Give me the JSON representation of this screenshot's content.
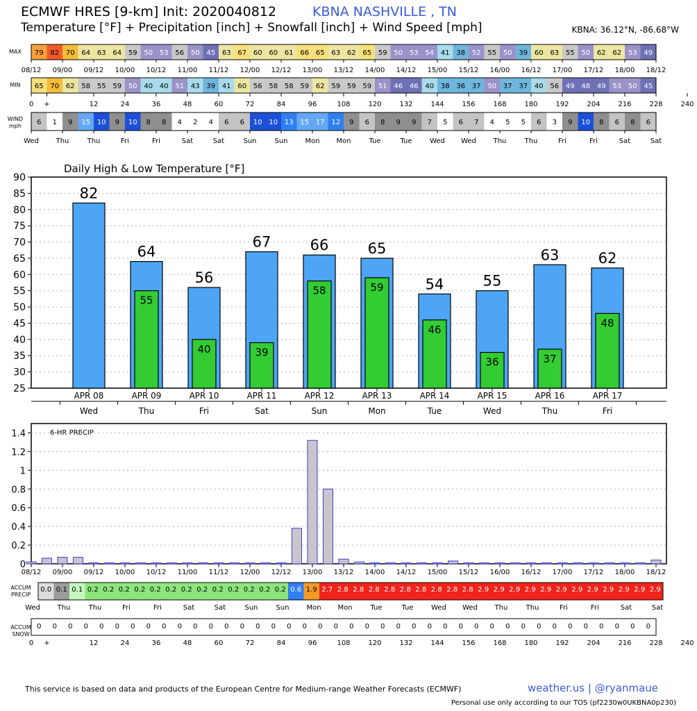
{
  "header": {
    "title": "ECMWF HRES [9-km] Init: 2020040812",
    "location": "KBNA NASHVILLE      , TN",
    "subtitle": "Temperature [°F] + Precipitation [inch] + Snowfall [inch] + Wind Speed [mph]",
    "coords": "KBNA: 36.12°N, -86.68°W"
  },
  "strips": {
    "max_label": "MAX",
    "min_label": "MIN",
    "wind_label": "WIND mph",
    "accum_precip_label": "ACCUM PRECIP",
    "accum_snow_label": "ACCUM SNOW",
    "date_ticks": [
      "08/12",
      "09/00",
      "09/12",
      "10/00",
      "10/12",
      "11/00",
      "11/12",
      "12/00",
      "12/12",
      "13/00",
      "13/12",
      "14/00",
      "14/12",
      "15/00",
      "15/12",
      "16/00",
      "16/12",
      "17/00",
      "17/12",
      "18/00",
      "18/12"
    ],
    "hour_ticks": [
      "0",
      "+",
      "12",
      "24",
      "36",
      "48",
      "60",
      "72",
      "84",
      "96",
      "108",
      "120",
      "132",
      "144",
      "156",
      "168",
      "180",
      "192",
      "204",
      "216",
      "228",
      "240"
    ],
    "day_ticks": [
      "Wed",
      "Thu",
      "Thu",
      "Fri",
      "Fri",
      "Sat",
      "Sat",
      "Sun",
      "Sun",
      "Mon",
      "Mon",
      "Tue",
      "Tue",
      "Wed",
      "Wed",
      "Thu",
      "Thu",
      "Fri",
      "Fri",
      "Sat",
      "Sat"
    ],
    "max_values": [
      79,
      82,
      70,
      64,
      63,
      64,
      59,
      50,
      53,
      56,
      50,
      45,
      63,
      67,
      60,
      60,
      61,
      66,
      65,
      63,
      62,
      65,
      59,
      50,
      53,
      54,
      41,
      38,
      52,
      55,
      50,
      39,
      60,
      63,
      55,
      50,
      62,
      62,
      53,
      49
    ],
    "min_values": [
      65,
      70,
      62,
      58,
      55,
      59,
      50,
      40,
      40,
      51,
      43,
      39,
      41,
      60,
      56,
      58,
      58,
      59,
      62,
      59,
      59,
      59,
      51,
      46,
      46,
      40,
      38,
      36,
      37,
      50,
      37,
      37,
      40,
      56,
      49,
      48,
      49,
      53,
      50,
      45
    ],
    "wind_values": [
      6,
      1,
      9,
      15,
      10,
      9,
      10,
      8,
      8,
      4,
      2,
      4,
      6,
      6,
      10,
      10,
      13,
      15,
      17,
      12,
      9,
      6,
      8,
      9,
      9,
      7,
      5,
      6,
      7,
      4,
      5,
      5,
      6,
      3,
      9,
      10,
      8,
      6,
      8,
      6
    ],
    "accum_precip": [
      "0.0",
      "0.1",
      "0.1",
      "0.2",
      "0.2",
      "0.2",
      "0.2",
      "0.2",
      "0.2",
      "0.2",
      "0.2",
      "0.2",
      "0.2",
      "0.2",
      "0.2",
      "0.2",
      "0.6",
      "1.9",
      "2.7",
      "2.8",
      "2.8",
      "2.8",
      "2.8",
      "2.8",
      "2.8",
      "2.8",
      "2.8",
      "2.8",
      "2.9",
      "2.9",
      "2.9",
      "2.9",
      "2.9",
      "2.9",
      "2.9",
      "2.9",
      "2.9",
      "2.9",
      "2.9",
      "2.9"
    ],
    "accum_snow": [
      "0",
      "0",
      "0",
      "0",
      "0",
      "0",
      "0",
      "0",
      "0",
      "0",
      "0",
      "0",
      "0",
      "0",
      "0",
      "0",
      "0",
      "0",
      "0",
      "0",
      "0",
      "0",
      "0",
      "0",
      "0",
      "0",
      "0",
      "0",
      "0",
      "0",
      "0",
      "0",
      "0",
      "0",
      "0",
      "0",
      "0",
      "0",
      "0",
      "0"
    ]
  },
  "chart_data": [
    {
      "type": "bar",
      "title": "Daily High & Low Temperature [°F]",
      "categories": [
        "APR 08",
        "APR 09",
        "APR 10",
        "APR 11",
        "APR 12",
        "APR 13",
        "APR 14",
        "APR 15",
        "APR 16",
        "APR 17"
      ],
      "weekdays": [
        "Wed",
        "Thu",
        "Fri",
        "Sat",
        "Sun",
        "Mon",
        "Tue",
        "Wed",
        "Thu",
        "Fri"
      ],
      "series": [
        {
          "values": [
            82,
            64,
            56,
            67,
            66,
            65,
            54,
            55,
            63,
            62
          ],
          "color": "#4ea5f5"
        },
        {
          "values": [
            null,
            55,
            40,
            39,
            58,
            59,
            46,
            36,
            37,
            48
          ],
          "color": "#33cc33"
        }
      ],
      "ylim": [
        25,
        90
      ],
      "yticks": [
        25,
        30,
        35,
        40,
        45,
        50,
        55,
        60,
        65,
        70,
        75,
        80,
        85,
        90
      ],
      "grid": true
    },
    {
      "type": "bar",
      "title": "6-HR PRECIP",
      "x_ticks": [
        "08/12",
        "09/00",
        "09/12",
        "10/00",
        "10/12",
        "11/00",
        "11/12",
        "12/00",
        "12/12",
        "13/00",
        "13/12",
        "14/00",
        "14/12",
        "15/00",
        "15/12",
        "16/00",
        "16/12",
        "17/00",
        "17/12",
        "18/00",
        "18/12"
      ],
      "values": [
        0.02,
        0.06,
        0.07,
        0.07,
        0.01,
        0.01,
        0.01,
        0.01,
        0.01,
        0.01,
        0.01,
        0.01,
        0.01,
        0.01,
        0.01,
        0.01,
        0.01,
        0.38,
        1.32,
        0.8,
        0.05,
        0.02,
        0.01,
        0.01,
        0.01,
        0.01,
        0.01,
        0.03,
        0.01,
        0.01,
        0.01,
        0.01,
        0.01,
        0.01,
        0.01,
        0.01,
        0.01,
        0.01,
        0.01,
        0.01,
        0.04
      ],
      "ylim": [
        0,
        1.5
      ],
      "yticks": [
        0,
        0.2,
        0.4,
        0.6,
        0.8,
        1,
        1.2,
        1.4
      ],
      "bar_color": "#c8c6cc",
      "bar_edge": "#3b3bd0",
      "grid": true
    }
  ],
  "footer": {
    "attribution": "This service is based on data and products of the European Centre for Medium-range Weather Forecasts (ECMWF)",
    "link": "weather.us | @ryanmaue",
    "tos": "Personal use only according to our TOS (pf2230w0UKBNA0p230)"
  }
}
